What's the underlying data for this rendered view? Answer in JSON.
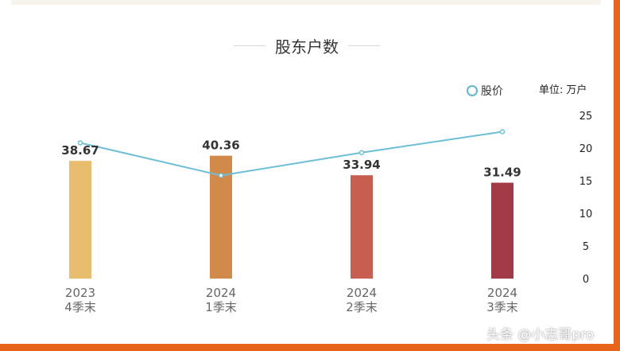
{
  "header": {
    "title": "股东户数"
  },
  "legend": {
    "line_label": "股价"
  },
  "unit": {
    "label": "单位:",
    "value": "万户"
  },
  "watermark": "头条 @小志哥pro",
  "colors": {
    "bars": [
      "#e8bd6e",
      "#d28a4a",
      "#c85e4f",
      "#a23a47"
    ],
    "line": "#6cbfd6",
    "axis_text": "#222222",
    "category_text": "#666666",
    "background_frame": "#e8641b"
  },
  "chart_data": {
    "type": "bar",
    "title": "股东户数",
    "categories": [
      {
        "year": "2023",
        "quarter": "4季末"
      },
      {
        "year": "2024",
        "quarter": "1季末"
      },
      {
        "year": "2024",
        "quarter": "2季末"
      },
      {
        "year": "2024",
        "quarter": "3季末"
      }
    ],
    "series": [
      {
        "name": "",
        "type": "bar",
        "values": [
          38.67,
          40.36,
          33.94,
          31.49
        ],
        "labels": [
          "38.67",
          "40.36",
          "33.94",
          "31.49"
        ]
      },
      {
        "name": "股价",
        "type": "line",
        "values": [
          20.8,
          15.8,
          19.3,
          22.5
        ]
      }
    ],
    "bar_axis": {
      "min": 0,
      "max": 53.6
    },
    "right_axis": {
      "min": 0,
      "max": 25,
      "ticks": [
        25,
        20,
        15,
        10,
        5,
        0
      ]
    },
    "legend_position": "top-right",
    "grid": false
  }
}
